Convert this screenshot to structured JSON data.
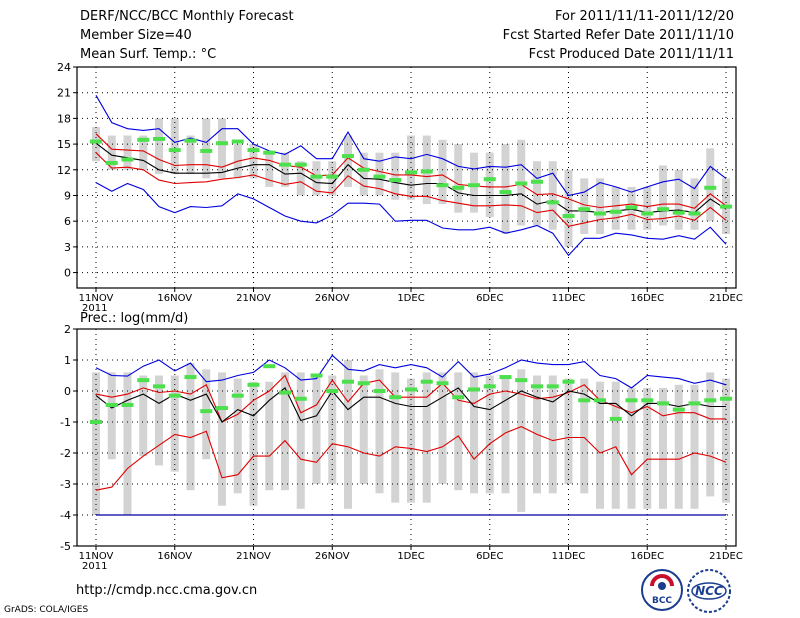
{
  "header": {
    "left": [
      "DERF/NCC/BCC Monthly Forecast",
      "Member Size=40",
      "Mean Surf. Temp.: °C"
    ],
    "right": [
      "For 2011/11/11-2011/12/20",
      "Fcst Started Refer Date 2011/11/10",
      "Fcst Produced Date 2011/11/11"
    ]
  },
  "footer": {
    "url": "http://cmdp.ncc.cma.gov.cn",
    "credit": "GrADS: COLA/IGES"
  },
  "logos": {
    "bcc": "BCC",
    "ncc": "NCC"
  },
  "colors": {
    "box": "#d3d3d3",
    "median": "#4de04d",
    "mean": "#000000",
    "sd": "#e00000",
    "extreme": "#0000e0",
    "floor": "#0000a0"
  },
  "chart_data": [
    {
      "type": "box",
      "title": "Mean Surf. Temp.: °C",
      "ylabel": "Mean Surf. Temp.: °C",
      "ylim": [
        -1.8,
        24
      ],
      "yticks": [
        0,
        3,
        6,
        9,
        12,
        15,
        18,
        21,
        24
      ],
      "x_ticks": [
        {
          "label": "11NOV",
          "sub": "2011",
          "day": 0
        },
        {
          "label": "16NOV",
          "day": 5
        },
        {
          "label": "21NOV",
          "day": 10
        },
        {
          "label": "26NOV",
          "day": 15
        },
        {
          "label": "1DEC",
          "day": 20
        },
        {
          "label": "6DEC",
          "day": 25
        },
        {
          "label": "11DEC",
          "day": 30
        },
        {
          "label": "16DEC",
          "day": 35
        },
        {
          "label": "21DEC",
          "day": 40
        }
      ],
      "days": 40,
      "series": {
        "max": [
          20.7,
          17.5,
          16.8,
          16.6,
          16.8,
          15.2,
          15.7,
          15.2,
          16.8,
          16.8,
          15.0,
          14.2,
          13.8,
          14.8,
          13.3,
          13.3,
          16.4,
          13.3,
          13.0,
          13.5,
          13.3,
          13.8,
          13.3,
          12.4,
          12.1,
          12.4,
          12.3,
          12.6,
          11.0,
          11.6,
          9.0,
          9.4,
          10.5,
          10.0,
          9.4,
          10.0,
          10.6,
          10.9,
          9.8,
          12.4,
          11.0
        ],
        "plus_sd": [
          16.2,
          14.4,
          14.3,
          14.2,
          13.2,
          12.5,
          12.6,
          12.6,
          12.3,
          13.0,
          13.4,
          13.1,
          12.5,
          12.3,
          11.3,
          11.4,
          13.4,
          12.2,
          11.8,
          11.4,
          11.4,
          11.2,
          11.4,
          10.3,
          10.1,
          10.0,
          10.0,
          10.3,
          9.1,
          9.2,
          8.6,
          7.9,
          7.6,
          7.8,
          8.0,
          7.7,
          8.0,
          8.0,
          7.5,
          9.2,
          7.8
        ],
        "mean": [
          15.1,
          13.7,
          13.4,
          13.1,
          12.0,
          11.6,
          11.6,
          11.6,
          11.7,
          12.2,
          12.6,
          12.6,
          11.5,
          11.6,
          10.5,
          10.4,
          12.6,
          11.0,
          10.9,
          10.5,
          10.2,
          10.4,
          10.4,
          9.3,
          9.0,
          9.0,
          9.0,
          9.2,
          8.0,
          8.4,
          7.2,
          7.2,
          7.0,
          7.2,
          7.4,
          7.0,
          7.2,
          7.3,
          7.0,
          8.6,
          7.4
        ],
        "minus_sd": [
          14.0,
          12.2,
          12.3,
          12.0,
          10.8,
          10.4,
          10.5,
          10.6,
          10.9,
          11.1,
          11.4,
          10.8,
          10.3,
          10.6,
          9.5,
          9.3,
          11.3,
          10.1,
          9.8,
          9.2,
          8.9,
          8.9,
          8.4,
          8.1,
          7.8,
          7.8,
          7.9,
          7.8,
          7.0,
          7.3,
          5.4,
          5.8,
          6.2,
          6.4,
          6.8,
          6.2,
          6.3,
          6.6,
          6.1,
          7.6,
          6.1
        ],
        "min": [
          10.5,
          9.5,
          10.4,
          9.7,
          7.7,
          7.0,
          7.7,
          7.6,
          7.8,
          9.2,
          8.6,
          7.6,
          6.6,
          6.0,
          5.8,
          6.7,
          8.1,
          8.1,
          8.0,
          6.0,
          6.1,
          6.1,
          5.2,
          5.0,
          5.0,
          5.3,
          4.6,
          5.0,
          5.5,
          4.6,
          2.0,
          4.0,
          4.0,
          4.6,
          4.4,
          4.0,
          3.9,
          4.3,
          3.9,
          5.3,
          3.3
        ],
        "box_top": [
          17.0,
          16.0,
          16.0,
          16.0,
          18.0,
          18.0,
          16.0,
          18.0,
          18.0,
          15.0,
          15.0,
          14.0,
          14.0,
          13.0,
          13.0,
          13.0,
          16.0,
          14.0,
          14.0,
          14.0,
          16.0,
          16.0,
          15.5,
          15.0,
          14.0,
          14.0,
          15.0,
          15.5,
          13.0,
          13.0,
          12.0,
          11.0,
          11.0,
          10.0,
          10.0,
          10.0,
          12.5,
          12.0,
          11.0,
          14.5,
          11.0
        ],
        "box_bottom": [
          13.0,
          12.0,
          12.0,
          12.0,
          11.5,
          11.5,
          11.5,
          11.0,
          11.0,
          11.0,
          11.0,
          10.0,
          10.0,
          9.0,
          9.0,
          9.0,
          10.0,
          9.0,
          9.0,
          8.5,
          8.5,
          8.0,
          8.0,
          7.0,
          7.0,
          6.5,
          4.5,
          5.5,
          5.5,
          5.0,
          3.0,
          4.5,
          4.5,
          5.0,
          5.0,
          5.0,
          5.5,
          5.0,
          5.0,
          6.0,
          4.5
        ],
        "median": [
          15.3,
          12.8,
          13.2,
          15.5,
          15.6,
          14.3,
          15.4,
          14.2,
          15.1,
          15.3,
          14.3,
          14.0,
          12.6,
          12.6,
          11.2,
          11.2,
          13.6,
          12.0,
          11.2,
          10.8,
          11.7,
          11.8,
          10.2,
          9.9,
          10.2,
          10.9,
          9.4,
          10.4,
          10.6,
          8.2,
          6.6,
          7.4,
          6.9,
          7.1,
          7.6,
          6.9,
          7.4,
          7.0,
          6.9,
          9.9,
          7.7
        ]
      }
    },
    {
      "type": "box",
      "title": "Prec.: log(mm/d)",
      "ylabel": "Prec.: log(mm/d)",
      "ylim": [
        -5,
        2
      ],
      "yticks": [
        -5,
        -4,
        -3,
        -2,
        -1,
        0,
        1,
        2
      ],
      "x_ticks": [
        {
          "label": "11NOV",
          "sub": "2011",
          "day": 0
        },
        {
          "label": "16NOV",
          "day": 5
        },
        {
          "label": "21NOV",
          "day": 10
        },
        {
          "label": "26NOV",
          "day": 15
        },
        {
          "label": "1DEC",
          "day": 20
        },
        {
          "label": "6DEC",
          "day": 25
        },
        {
          "label": "11DEC",
          "day": 30
        },
        {
          "label": "16DEC",
          "day": 35
        },
        {
          "label": "21DEC",
          "day": 40
        }
      ],
      "days": 40,
      "floor": -4,
      "series": {
        "max": [
          0.75,
          0.5,
          0.48,
          0.8,
          1.0,
          0.65,
          0.9,
          0.3,
          0.35,
          0.5,
          0.6,
          1.0,
          0.75,
          0.35,
          0.4,
          1.15,
          0.7,
          0.65,
          0.85,
          0.75,
          0.85,
          0.75,
          0.45,
          0.95,
          0.45,
          0.55,
          0.75,
          1.0,
          0.9,
          0.85,
          0.85,
          0.95,
          0.5,
          0.4,
          0.1,
          0.5,
          0.45,
          0.4,
          0.25,
          0.35,
          0.2
        ],
        "plus_sd": [
          -0.1,
          -0.2,
          -0.1,
          0.1,
          -0.05,
          0.0,
          -0.1,
          0.2,
          -1.0,
          -0.75,
          -0.3,
          0.0,
          0.5,
          -0.7,
          -0.45,
          0.35,
          -0.35,
          0.25,
          0.35,
          -0.2,
          -0.2,
          -0.2,
          0.25,
          -0.3,
          -0.4,
          -0.1,
          0.0,
          -0.1,
          -0.25,
          -0.2,
          -0.05,
          0.2,
          -0.3,
          -0.5,
          -0.7,
          -0.5,
          -0.8,
          -0.7,
          -0.7,
          -0.9,
          -0.9
        ],
        "mean": [
          -0.15,
          -0.55,
          -0.3,
          -0.1,
          -0.4,
          -0.1,
          -0.3,
          -0.1,
          -1.0,
          -0.6,
          -0.8,
          -0.3,
          0.1,
          -0.95,
          -0.8,
          0.0,
          -0.6,
          -0.2,
          -0.2,
          -0.4,
          -0.5,
          -0.5,
          -0.2,
          0.1,
          -0.5,
          -0.6,
          -0.3,
          0.0,
          -0.2,
          -0.35,
          0.0,
          -0.1,
          -0.4,
          -0.4,
          -0.8,
          -0.4,
          -0.4,
          -0.5,
          -0.4,
          -0.5,
          -0.5
        ],
        "minus_sd": [
          -3.2,
          -3.1,
          -2.5,
          -2.1,
          -1.75,
          -1.4,
          -1.5,
          -1.3,
          -2.8,
          -2.7,
          -2.1,
          -2.1,
          -1.6,
          -2.2,
          -2.3,
          -1.7,
          -1.8,
          -2.0,
          -2.1,
          -1.8,
          -1.85,
          -1.95,
          -1.8,
          -1.45,
          -2.2,
          -1.7,
          -1.35,
          -1.15,
          -1.4,
          -1.6,
          -1.5,
          -1.5,
          -2.0,
          -1.8,
          -2.7,
          -2.2,
          -2.2,
          -2.2,
          -2.0,
          -2.1,
          -2.3
        ],
        "box_top": [
          0.6,
          0.6,
          0.6,
          0.5,
          0.5,
          0.5,
          0.9,
          0.7,
          0.6,
          0.4,
          0.3,
          0.3,
          0.6,
          0.6,
          0.5,
          0.5,
          1.0,
          0.5,
          0.7,
          0.6,
          0.4,
          0.6,
          0.6,
          0.6,
          0.6,
          0.5,
          0.5,
          0.7,
          0.5,
          0.5,
          0.4,
          0.4,
          0.3,
          0.3,
          0.1,
          0.1,
          0.1,
          0.2,
          0.2,
          0.6,
          0.4
        ],
        "box_bottom": [
          -4.0,
          -2.2,
          -4.0,
          -2.1,
          -2.4,
          -2.6,
          -3.2,
          -2.2,
          -3.7,
          -3.3,
          -3.7,
          -3.2,
          -3.2,
          -3.8,
          -3.0,
          -3.0,
          -3.8,
          -3.0,
          -3.3,
          -3.6,
          -3.6,
          -3.6,
          -3.0,
          -3.2,
          -3.3,
          -3.3,
          -3.3,
          -3.9,
          -3.3,
          -3.3,
          -3.0,
          -3.3,
          -3.8,
          -3.8,
          -3.8,
          -3.8,
          -3.8,
          -3.8,
          -3.8,
          -3.4,
          -3.6
        ],
        "median": [
          -1.0,
          -0.45,
          -0.45,
          0.35,
          0.15,
          -0.15,
          0.45,
          -0.65,
          -0.55,
          -0.15,
          0.2,
          0.8,
          -0.05,
          -0.25,
          0.5,
          0.0,
          0.3,
          0.25,
          0.0,
          -0.2,
          0.05,
          0.3,
          0.25,
          -0.2,
          0.05,
          0.15,
          0.45,
          0.35,
          0.15,
          0.15,
          0.3,
          -0.3,
          -0.3,
          -0.9,
          -0.3,
          -0.3,
          -0.4,
          -0.6,
          -0.4,
          -0.3,
          -0.25
        ]
      }
    }
  ]
}
